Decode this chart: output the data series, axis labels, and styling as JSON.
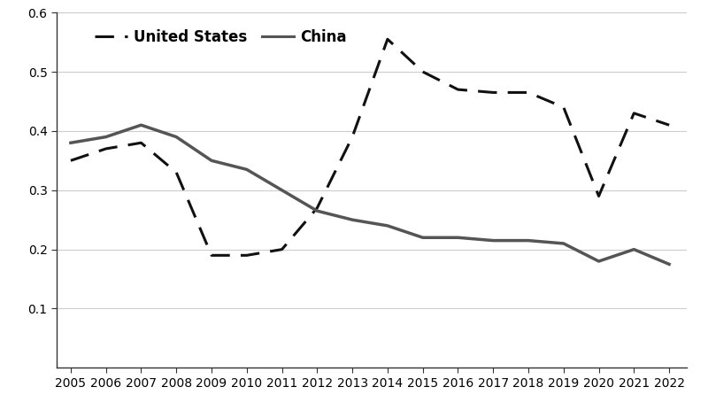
{
  "years": [
    2005,
    2006,
    2007,
    2008,
    2009,
    2010,
    2011,
    2012,
    2013,
    2014,
    2015,
    2016,
    2017,
    2018,
    2019,
    2020,
    2021,
    2022
  ],
  "us_values": [
    0.35,
    0.37,
    0.38,
    0.33,
    0.19,
    0.19,
    0.2,
    0.27,
    0.39,
    0.555,
    0.5,
    0.47,
    0.465,
    0.465,
    0.44,
    0.29,
    0.43,
    0.41
  ],
  "china_values": [
    0.38,
    0.39,
    0.41,
    0.39,
    0.35,
    0.335,
    0.3,
    0.265,
    0.25,
    0.24,
    0.22,
    0.22,
    0.215,
    0.215,
    0.21,
    0.18,
    0.2,
    0.175
  ],
  "us_label": "United States",
  "china_label": "China",
  "us_color": "#111111",
  "china_color": "#555555",
  "us_linewidth": 2.2,
  "china_linewidth": 2.5,
  "ylim": [
    0.0,
    0.6
  ],
  "yticks": [
    0.1,
    0.2,
    0.3,
    0.4,
    0.5,
    0.6
  ],
  "grid_color": "#cccccc",
  "bg_color": "#ffffff",
  "legend_fontsize": 12,
  "tick_fontsize": 10,
  "dash_on": 7,
  "dash_off": 4
}
